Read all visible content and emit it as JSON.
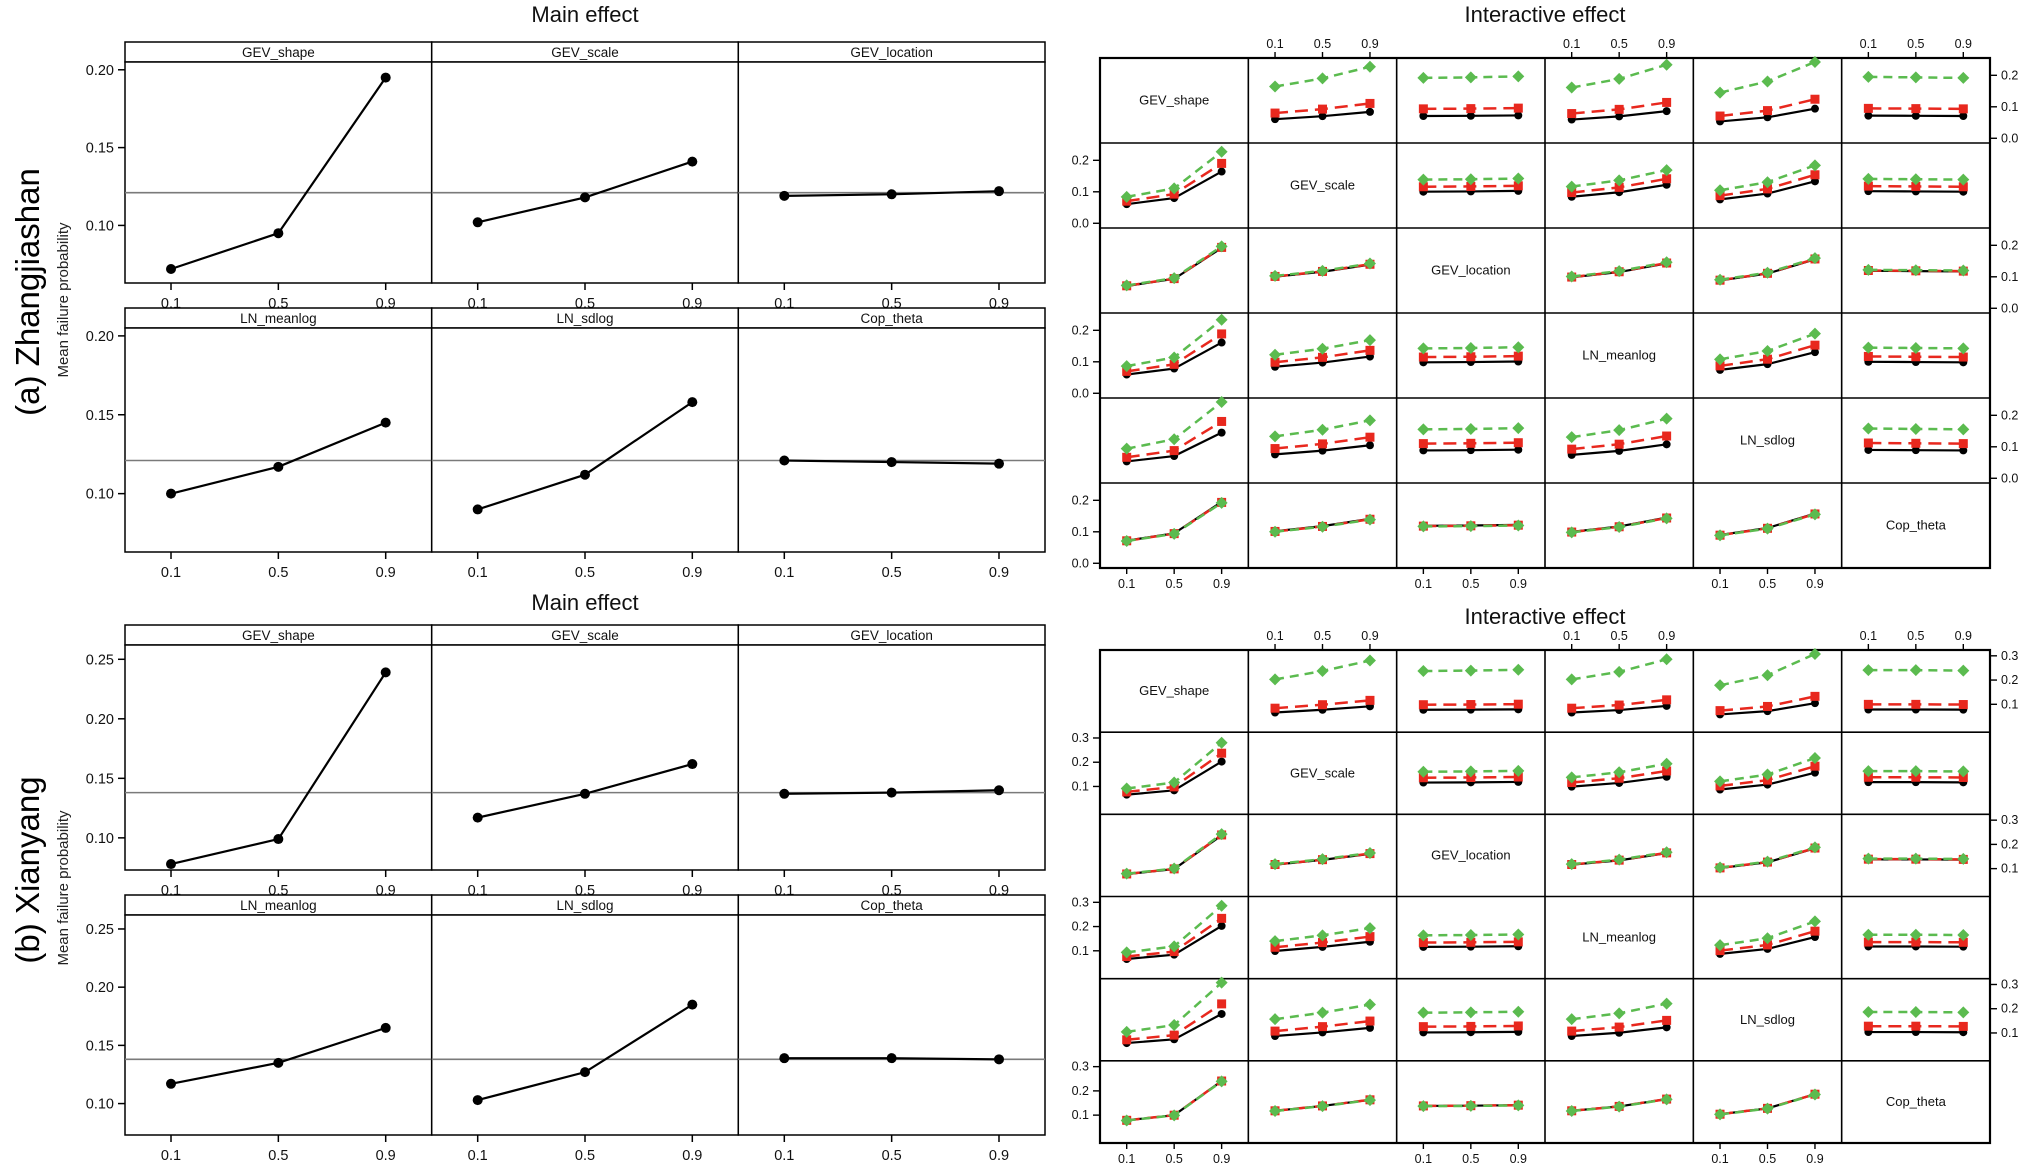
{
  "series_styles": [
    {
      "level": "0.1",
      "color": "#000000",
      "marker": "circle",
      "line": "solid"
    },
    {
      "level": "0.5",
      "color": "#e8281e",
      "marker": "square",
      "line": "dashed"
    },
    {
      "level": "0.9",
      "color": "#5bbb4f",
      "marker": "diamond",
      "line": "dashed"
    }
  ],
  "chart_data": [
    {
      "site_label": "(a) Zhangjiashan",
      "main_effect": {
        "type": "line",
        "title": "Main effect",
        "ylabel": "Mean failure probability",
        "x_levels": [
          0.1,
          0.5,
          0.9
        ],
        "x_tick_labels": [
          "0.1",
          "0.5",
          "0.9"
        ],
        "ylim": [
          0.063,
          0.205
        ],
        "yticks": [
          0.2,
          0.15,
          0.1
        ],
        "ytick_labels": [
          "0.20",
          "0.15",
          "0.10"
        ],
        "reference_line": 0.121,
        "panels": [
          {
            "name": "GEV_shape",
            "values": [
              0.072,
              0.095,
              0.195
            ]
          },
          {
            "name": "GEV_scale",
            "values": [
              0.102,
              0.118,
              0.141
            ]
          },
          {
            "name": "GEV_location",
            "values": [
              0.119,
              0.12,
              0.122
            ]
          },
          {
            "name": "LN_meanlog",
            "values": [
              0.1,
              0.117,
              0.145
            ]
          },
          {
            "name": "LN_sdlog",
            "values": [
              0.09,
              0.112,
              0.158
            ]
          },
          {
            "name": "Cop_theta",
            "values": [
              0.121,
              0.12,
              0.119
            ]
          }
        ]
      },
      "interactive_effect": {
        "type": "line-matrix",
        "title": "Interactive effect",
        "factors": [
          "GEV_shape",
          "GEV_scale",
          "GEV_location",
          "LN_meanlog",
          "LN_sdlog",
          "Cop_theta"
        ],
        "grand_mean": 0.121,
        "model": "cell(row i, col j): y(level,x) = main_j(x) * main_i(level) / grand_mean",
        "trace_levels": [
          0.1,
          0.5,
          0.9
        ],
        "x_tick_labels": [
          "0.1",
          "0.5",
          "0.9"
        ],
        "cell_ylim": [
          -0.015,
          0.255
        ],
        "yticks": [
          0.2,
          0.1,
          0.0
        ],
        "ytick_labels": [
          "0.2",
          "0.1",
          "0.0"
        ]
      }
    },
    {
      "site_label": "(b) Xianyang",
      "main_effect": {
        "type": "line",
        "title": "Main effect",
        "ylabel": "Mean failure probability",
        "x_levels": [
          0.1,
          0.5,
          0.9
        ],
        "x_tick_labels": [
          "0.1",
          "0.5",
          "0.9"
        ],
        "ylim": [
          0.073,
          0.262
        ],
        "yticks": [
          0.25,
          0.2,
          0.15,
          0.1
        ],
        "ytick_labels": [
          "0.25",
          "0.20",
          "0.15",
          "0.10"
        ],
        "reference_line": 0.138,
        "panels": [
          {
            "name": "GEV_shape",
            "values": [
              0.078,
              0.099,
              0.239
            ]
          },
          {
            "name": "GEV_scale",
            "values": [
              0.117,
              0.137,
              0.162
            ]
          },
          {
            "name": "GEV_location",
            "values": [
              0.137,
              0.138,
              0.14
            ]
          },
          {
            "name": "LN_meanlog",
            "values": [
              0.117,
              0.135,
              0.165
            ]
          },
          {
            "name": "LN_sdlog",
            "values": [
              0.103,
              0.127,
              0.185
            ]
          },
          {
            "name": "Cop_theta",
            "values": [
              0.139,
              0.139,
              0.138
            ]
          }
        ]
      },
      "interactive_effect": {
        "type": "line-matrix",
        "title": "Interactive effect",
        "factors": [
          "GEV_shape",
          "GEV_scale",
          "GEV_location",
          "LN_meanlog",
          "LN_sdlog",
          "Cop_theta"
        ],
        "grand_mean": 0.138,
        "model": "cell(row i, col j): y(level,x) = main_j(x) * main_i(level) / grand_mean",
        "trace_levels": [
          0.1,
          0.5,
          0.9
        ],
        "x_tick_labels": [
          "0.1",
          "0.5",
          "0.9"
        ],
        "cell_ylim": [
          -0.015,
          0.324
        ],
        "yticks": [
          0.3,
          0.2,
          0.1
        ],
        "ytick_labels": [
          "0.3",
          "0.2",
          "0.1"
        ]
      }
    }
  ]
}
